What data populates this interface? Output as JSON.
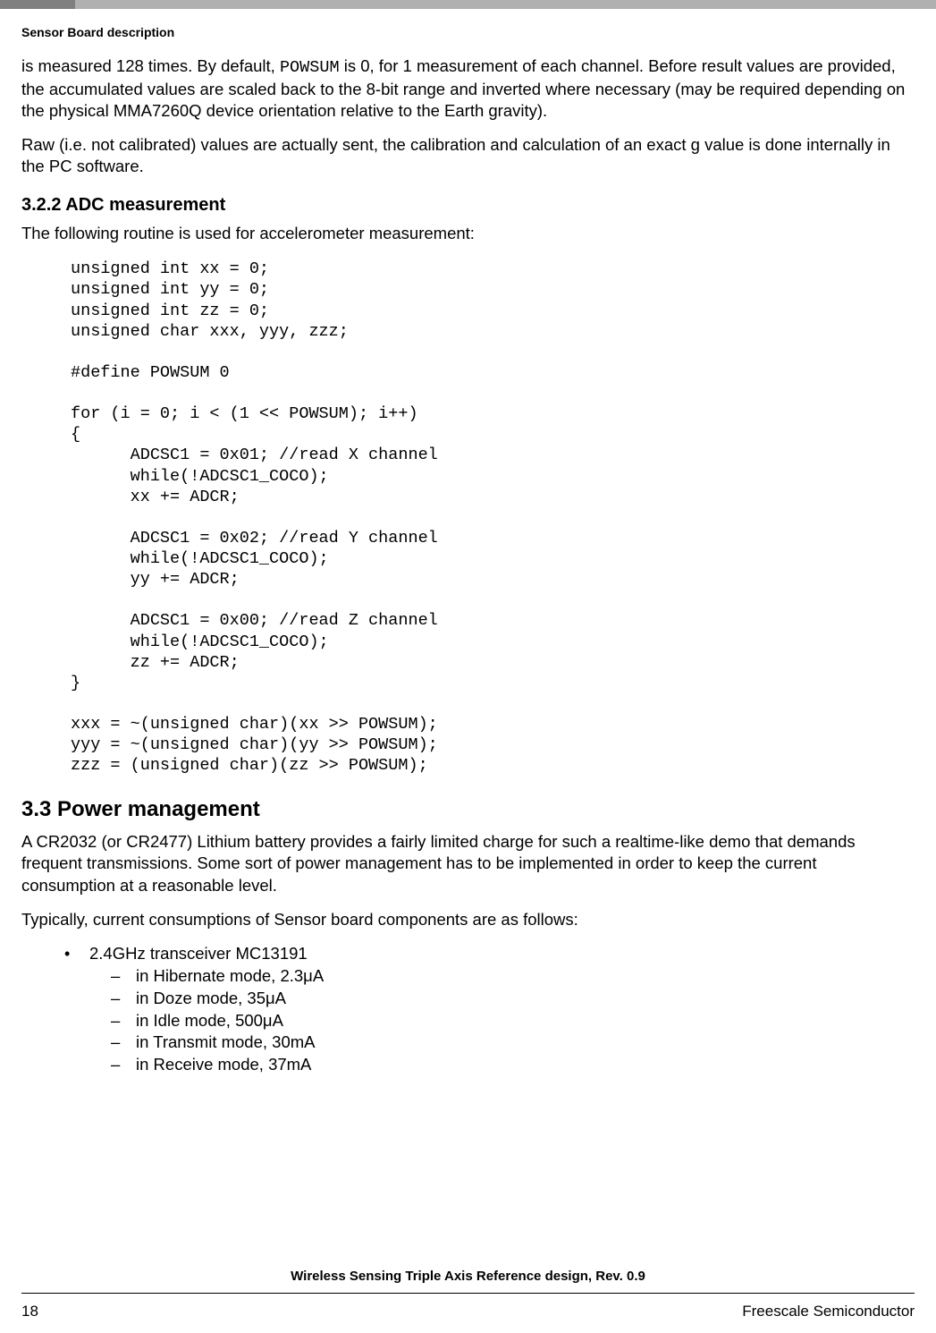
{
  "header": {
    "sectionLabel": "Sensor Board description"
  },
  "paragraphs": {
    "p1_part1": "is measured 128 times. By default, ",
    "p1_code": "POWSUM",
    "p1_part2": " is 0, for 1 measurement of each channel. Before result values are provided, the accumulated values are scaled back to the 8-bit range and inverted where necessary (may be required depending on the physical MMA7260Q device orientation relative to the Earth gravity).",
    "p2": "Raw (i.e. not calibrated) values are actually sent, the calibration and calculation of an exact g value is done internally in the PC software.",
    "p3": "The following routine is used for accelerometer measurement:",
    "p4": "A CR2032 (or CR2477) Lithium battery provides a fairly limited charge for such a realtime-like demo that demands frequent transmissions. Some sort of power management has to be implemented in order to keep the current consumption at a reasonable level.",
    "p5": "Typically, current consumptions of Sensor board components are as follows:"
  },
  "headings": {
    "h322": "3.2.2  ADC measurement",
    "h33": "3.3  Power management"
  },
  "code": "unsigned int xx = 0;\nunsigned int yy = 0;\nunsigned int zz = 0;\nunsigned char xxx, yyy, zzz;\n\n#define POWSUM 0\n\nfor (i = 0; i < (1 << POWSUM); i++)\n{\n      ADCSC1 = 0x01; //read X channel\n      while(!ADCSC1_COCO);\n      xx += ADCR;\n\n      ADCSC1 = 0x02; //read Y channel\n      while(!ADCSC1_COCO);\n      yy += ADCR;\n\n      ADCSC1 = 0x00; //read Z channel\n      while(!ADCSC1_COCO);\n      zz += ADCR;\n}\n\nxxx = ~(unsigned char)(xx >> POWSUM);\nyyy = ~(unsigned char)(yy >> POWSUM);\nzzz = (unsigned char)(zz >> POWSUM);",
  "list": {
    "item1": "2.4GHz transceiver MC13191",
    "sub1": "in Hibernate mode, 2.3μA",
    "sub2": "in Doze mode, 35μA",
    "sub3": "in Idle mode, 500μA",
    "sub4": "in Transmit mode, 30mA",
    "sub5": "in Receive mode, 37mA"
  },
  "footer": {
    "title": "Wireless Sensing Triple Axis Reference design, Rev. 0.9",
    "pageNumber": "18",
    "company": "Freescale Semiconductor"
  }
}
